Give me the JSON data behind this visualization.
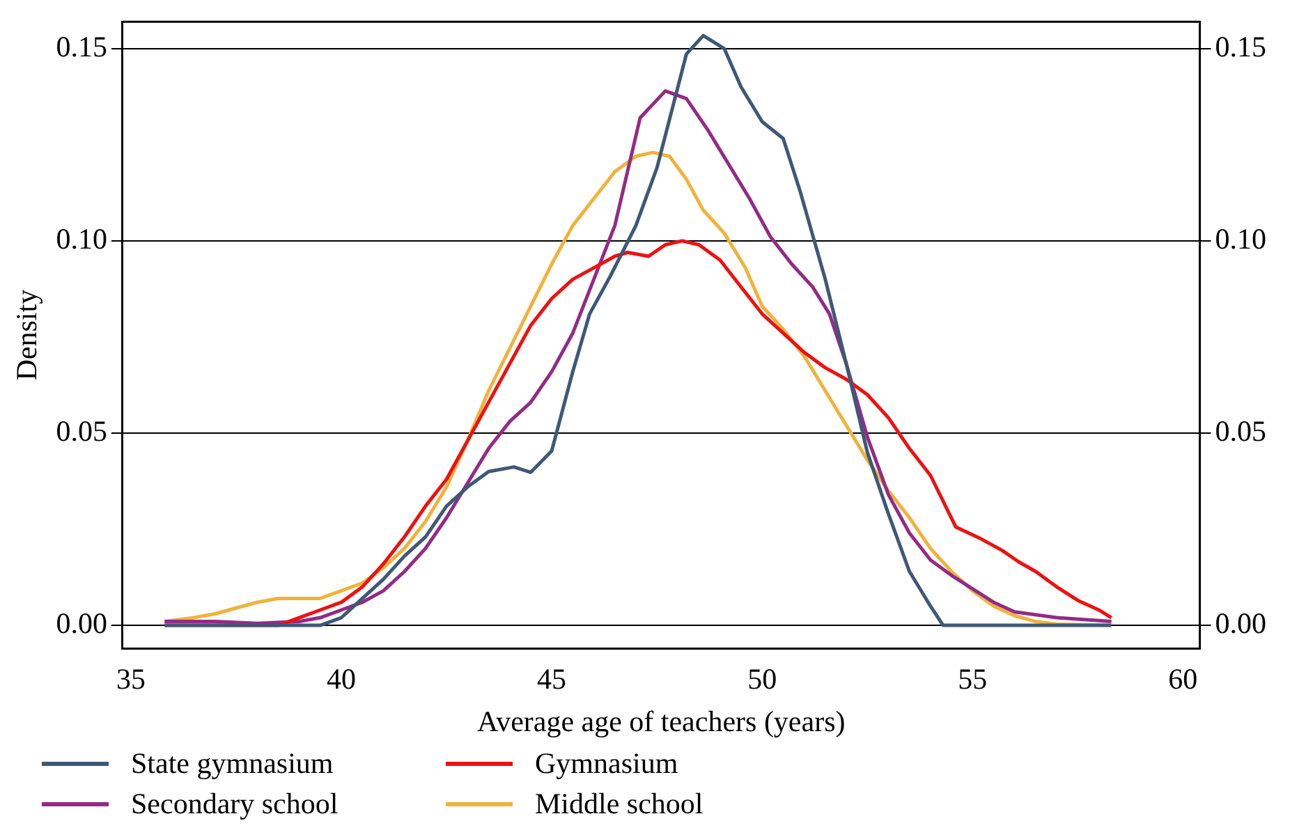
{
  "chart_data": {
    "type": "line",
    "xlabel": "Average age of teachers (years)",
    "ylabel": "Density",
    "xlim": [
      34.8,
      60.4
    ],
    "xticks": [
      35,
      40,
      45,
      50,
      55,
      60
    ],
    "ylim": [
      -0.006,
      0.157
    ],
    "yticks": [
      {
        "value": 0,
        "label": "0.00"
      },
      {
        "value": 0.05,
        "label": "0.05"
      },
      {
        "value": 0.1,
        "label": "0.10"
      },
      {
        "value": 0.15,
        "label": "0.15"
      }
    ],
    "y2lim": [
      -0.006,
      0.157
    ],
    "y2ticks": [
      {
        "value": 0,
        "label": "0.00"
      },
      {
        "value": 0.05,
        "label": "0.05"
      },
      {
        "value": 0.1,
        "label": "0.10"
      },
      {
        "value": 0.15,
        "label": "0.15"
      }
    ],
    "grid": "y",
    "legend": "bottom",
    "marker": "none",
    "line_style": "solid",
    "series": [
      {
        "name": "State gymnasium",
        "color": "#3e5878",
        "x": [
          35.8,
          39.5,
          40,
          40.5,
          41,
          41.5,
          42,
          42.5,
          43,
          43.5,
          44.1,
          44.5,
          45,
          45.5,
          45.9,
          46.4,
          47,
          47.5,
          48.2,
          48.6,
          49.1,
          49.5,
          50,
          50.5,
          50.9,
          51.5,
          52,
          52.5,
          53,
          53.5,
          54,
          54.3,
          58.3
        ],
        "values": [
          0,
          0,
          0.002,
          0.007,
          0.012,
          0.018,
          0.023,
          0.031,
          0.036,
          0.04,
          0.0412,
          0.0398,
          0.0454,
          0.066,
          0.081,
          0.091,
          0.104,
          0.119,
          0.1486,
          0.1534,
          0.15,
          0.14,
          0.131,
          0.1266,
          0.113,
          0.09,
          0.068,
          0.045,
          0.029,
          0.014,
          0.005,
          0,
          0
        ]
      },
      {
        "name": "Gymnasium",
        "color": "#ee1111",
        "x": [
          35.8,
          38.5,
          39,
          39.5,
          40,
          40.5,
          41,
          41.5,
          42,
          42.5,
          43,
          43.5,
          44,
          44.5,
          45,
          45.5,
          46,
          46.5,
          46.8,
          47.3,
          47.7,
          48.1,
          48.5,
          49,
          49.5,
          50,
          50.5,
          51,
          51.5,
          52,
          52.5,
          53,
          53.5,
          54,
          54.6,
          55.2,
          55.7,
          56.1,
          56.5,
          57,
          57.5,
          58,
          58.3
        ],
        "values": [
          0,
          0,
          0.002,
          0.004,
          0.006,
          0.01,
          0.016,
          0.023,
          0.031,
          0.038,
          0.048,
          0.058,
          0.068,
          0.078,
          0.085,
          0.09,
          0.093,
          0.096,
          0.097,
          0.096,
          0.099,
          0.1,
          0.099,
          0.095,
          0.088,
          0.081,
          0.076,
          0.071,
          0.067,
          0.064,
          0.06,
          0.054,
          0.046,
          0.039,
          0.0256,
          0.0225,
          0.0195,
          0.0165,
          0.014,
          0.01,
          0.0065,
          0.004,
          0.002
        ]
      },
      {
        "name": "Secondary school",
        "color": "#932b86",
        "x": [
          35.8,
          37,
          38,
          39,
          39.5,
          40,
          40.5,
          41,
          41.5,
          42,
          42.5,
          43,
          43.5,
          44,
          44.5,
          45,
          45.5,
          46,
          46.5,
          47.1,
          47.7,
          48.2,
          48.7,
          49.2,
          49.7,
          50.2,
          50.7,
          51.2,
          51.6,
          52,
          52.5,
          53,
          53.5,
          54,
          54.5,
          55,
          55.5,
          56,
          57,
          58.3
        ],
        "values": [
          0.001,
          0.001,
          0.0005,
          0.001,
          0.002,
          0.004,
          0.006,
          0.009,
          0.014,
          0.02,
          0.028,
          0.037,
          0.046,
          0.053,
          0.058,
          0.066,
          0.076,
          0.09,
          0.104,
          0.132,
          0.139,
          0.137,
          0.129,
          0.12,
          0.111,
          0.101,
          0.094,
          0.088,
          0.081,
          0.068,
          0.049,
          0.034,
          0.024,
          0.017,
          0.013,
          0.0095,
          0.006,
          0.0035,
          0.002,
          0.001
        ]
      },
      {
        "name": "Middle school",
        "color": "#efb33c",
        "x": [
          35.8,
          36.5,
          37,
          37.5,
          38,
          38.5,
          39,
          39.5,
          40,
          40.5,
          41,
          41.5,
          42,
          42.5,
          43,
          43.5,
          44,
          44.5,
          45,
          45.5,
          46,
          46.5,
          47,
          47.4,
          47.8,
          48.2,
          48.6,
          49.1,
          49.6,
          50,
          50.5,
          51,
          51.5,
          52,
          52.5,
          53,
          53.5,
          54,
          54.5,
          55,
          55.5,
          56,
          56.5,
          57,
          58.3
        ],
        "values": [
          0.001,
          0.002,
          0.003,
          0.0045,
          0.006,
          0.007,
          0.007,
          0.007,
          0.009,
          0.011,
          0.015,
          0.02,
          0.027,
          0.036,
          0.048,
          0.061,
          0.072,
          0.083,
          0.094,
          0.104,
          0.111,
          0.118,
          0.122,
          0.123,
          0.122,
          0.116,
          0.108,
          0.102,
          0.093,
          0.083,
          0.077,
          0.07,
          0.061,
          0.052,
          0.043,
          0.035,
          0.028,
          0.02,
          0.014,
          0.009,
          0.005,
          0.0025,
          0.001,
          0.0003,
          0
        ]
      }
    ]
  }
}
